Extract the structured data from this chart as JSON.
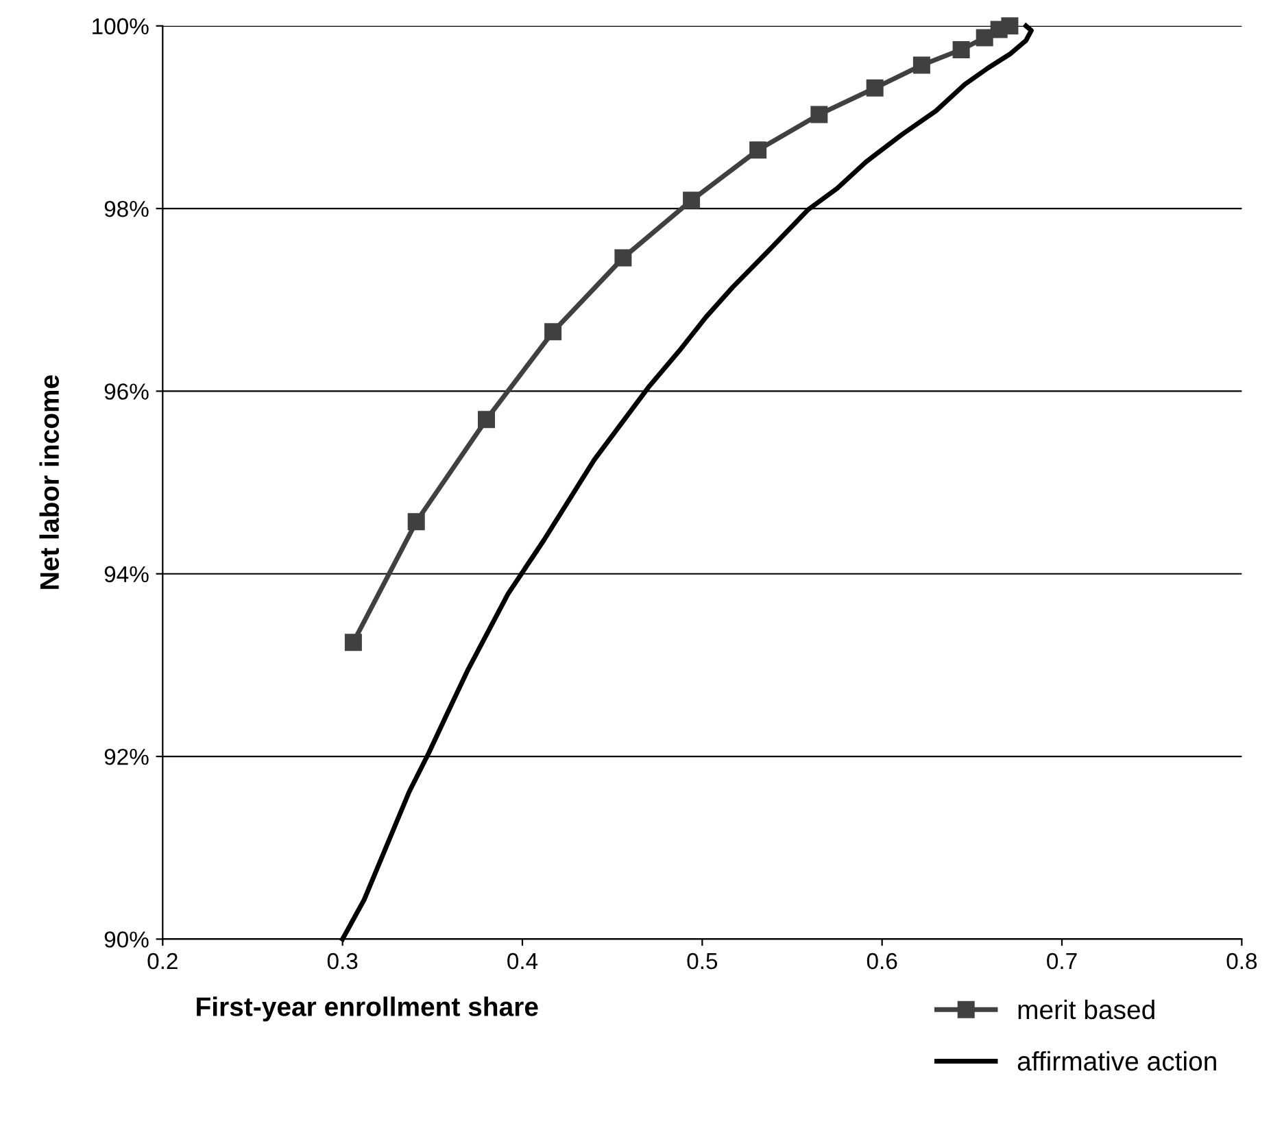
{
  "chart_data": {
    "type": "line",
    "xlabel": "First-year enrollment share",
    "ylabel": "Net labor income",
    "xlim": [
      0.2,
      0.8
    ],
    "xticks": [
      0.2,
      0.3,
      0.4,
      0.5,
      0.6,
      0.7,
      0.8
    ],
    "ylim": [
      90,
      100
    ],
    "yticks": [
      {
        "value": 90,
        "label": "90%"
      },
      {
        "value": 92,
        "label": "92%"
      },
      {
        "value": 94,
        "label": "94%"
      },
      {
        "value": 96,
        "label": "96%"
      },
      {
        "value": 98,
        "label": "98%"
      },
      {
        "value": 100,
        "label": "100%"
      }
    ],
    "grid": "y",
    "legend": "bottom right",
    "series": [
      {
        "name": "merit based",
        "color": "#404040",
        "marker": "square",
        "x": [
          0.306,
          0.341,
          0.38,
          0.417,
          0.456,
          0.494,
          0.531,
          0.565,
          0.596,
          0.622,
          0.644,
          0.657,
          0.665,
          0.671
        ],
        "values": [
          93.25,
          94.57,
          95.69,
          96.65,
          97.46,
          98.09,
          98.64,
          99.03,
          99.32,
          99.57,
          99.74,
          99.87,
          99.96,
          100.0
        ]
      },
      {
        "name": "affirmative action",
        "color": "#000000",
        "marker": "none",
        "x": [
          0.3,
          0.312,
          0.337,
          0.348,
          0.357,
          0.37,
          0.392,
          0.412,
          0.44,
          0.47,
          0.488,
          0.502,
          0.517,
          0.536,
          0.559,
          0.575,
          0.591,
          0.611,
          0.63,
          0.646,
          0.659,
          0.671,
          0.68,
          0.683,
          0.68
        ],
        "values": [
          90.0,
          90.43,
          91.61,
          92.04,
          92.42,
          92.96,
          93.78,
          94.37,
          95.25,
          96.04,
          96.46,
          96.81,
          97.14,
          97.52,
          97.99,
          98.22,
          98.51,
          98.81,
          99.07,
          99.36,
          99.54,
          99.69,
          99.84,
          99.95,
          100.0
        ]
      }
    ]
  }
}
